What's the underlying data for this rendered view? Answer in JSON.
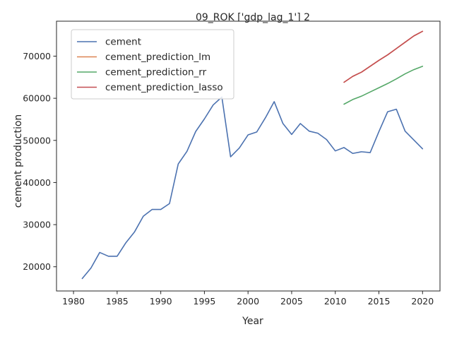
{
  "chart_data": {
    "type": "line",
    "title": "09_ROK ['gdp_lag_1'] 2",
    "xlabel": "Year",
    "ylabel": "cement production",
    "xlim": [
      1978.05,
      2022
    ],
    "ylim": [
      14250,
      78300
    ],
    "xticks": [
      1980,
      1985,
      1990,
      1995,
      2000,
      2005,
      2010,
      2015,
      2020
    ],
    "yticks": [
      20000,
      30000,
      40000,
      50000,
      60000,
      70000
    ],
    "grid": false,
    "legend_position": "top-left",
    "series": [
      {
        "name": "cement",
        "color": "#4c72b0",
        "x": [
          1981,
          1982,
          1983,
          1984,
          1985,
          1986,
          1987,
          1988,
          1989,
          1990,
          1991,
          1992,
          1993,
          1994,
          1995,
          1996,
          1997,
          1998,
          1999,
          2000,
          2001,
          2002,
          2003,
          2004,
          2005,
          2006,
          2007,
          2008,
          2009,
          2010,
          2011,
          2012,
          2013,
          2014,
          2015,
          2016,
          2017,
          2018,
          2019,
          2020
        ],
        "y": [
          17200,
          19700,
          23400,
          22500,
          22500,
          25700,
          28300,
          32000,
          33600,
          33600,
          35000,
          44400,
          47400,
          52100,
          55100,
          58400,
          60300,
          46100,
          48200,
          51300,
          52000,
          55400,
          59200,
          54000,
          51400,
          54000,
          52200,
          51700,
          50200,
          47500,
          48300,
          46900,
          47300,
          47100,
          52100,
          56800,
          57400,
          52200,
          50100,
          48000
        ]
      },
      {
        "name": "cement_prediction_lm",
        "color": "#dd8452",
        "x": [
          2011,
          2012,
          2013,
          2014,
          2015,
          2016,
          2017,
          2018,
          2019,
          2020
        ],
        "y": [
          63800,
          65200,
          66200,
          67600,
          69000,
          70300,
          71800,
          73300,
          74800,
          75900
        ]
      },
      {
        "name": "cement_prediction_rr",
        "color": "#55a868",
        "x": [
          2011,
          2012,
          2013,
          2014,
          2015,
          2016,
          2017,
          2018,
          2019,
          2020
        ],
        "y": [
          58600,
          59700,
          60500,
          61500,
          62500,
          63500,
          64600,
          65800,
          66800,
          67600
        ]
      },
      {
        "name": "cement_prediction_lasso",
        "color": "#c44e52",
        "x": [
          2011,
          2012,
          2013,
          2014,
          2015,
          2016,
          2017,
          2018,
          2019,
          2020
        ],
        "y": [
          63800,
          65200,
          66200,
          67600,
          69000,
          70300,
          71800,
          73300,
          74800,
          75900
        ]
      }
    ]
  }
}
